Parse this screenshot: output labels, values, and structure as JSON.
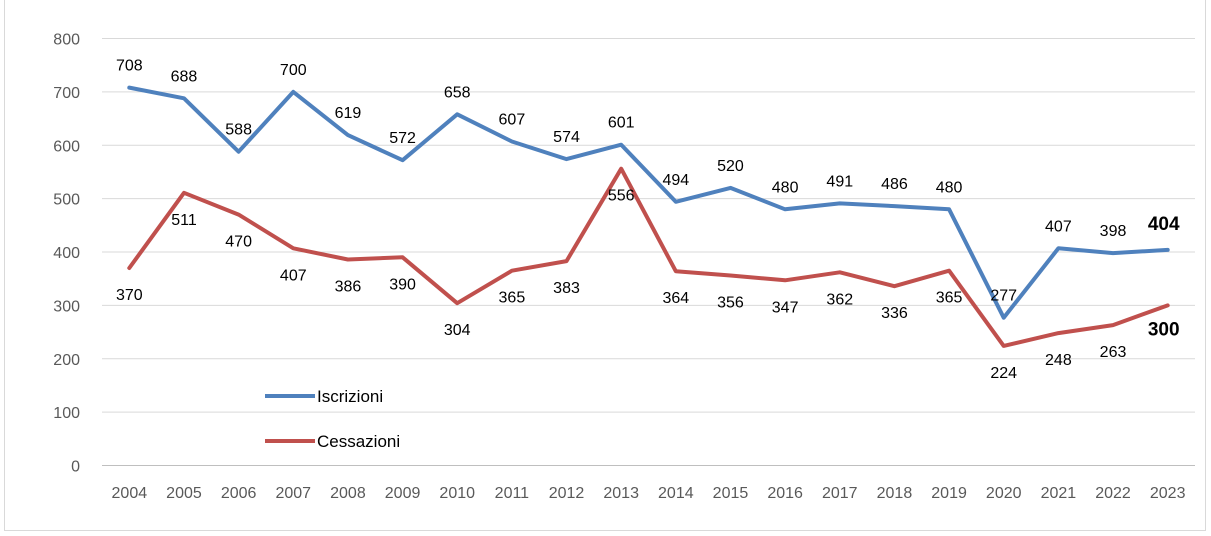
{
  "chart_data": {
    "type": "line",
    "title": "",
    "xlabel": "",
    "ylabel": "",
    "categories": [
      "2004",
      "2005",
      "2006",
      "2007",
      "2008",
      "2009",
      "2010",
      "2011",
      "2012",
      "2013",
      "2014",
      "2015",
      "2016",
      "2017",
      "2018",
      "2019",
      "2020",
      "2021",
      "2022",
      "2023"
    ],
    "ylim": [
      0,
      800
    ],
    "yticks": [
      0,
      100,
      200,
      300,
      400,
      500,
      600,
      700,
      800
    ],
    "grid": true,
    "legend_position": "bottom-left",
    "series": [
      {
        "name": "Iscrizioni",
        "color": "#4f81bd",
        "values": [
          708,
          688,
          588,
          700,
          619,
          572,
          658,
          607,
          574,
          601,
          494,
          520,
          480,
          491,
          486,
          480,
          277,
          407,
          398,
          404
        ]
      },
      {
        "name": "Cessazioni",
        "color": "#c0504d",
        "values": [
          370,
          511,
          470,
          407,
          386,
          390,
          304,
          365,
          383,
          556,
          364,
          356,
          347,
          362,
          336,
          365,
          224,
          248,
          263,
          300
        ]
      }
    ]
  }
}
